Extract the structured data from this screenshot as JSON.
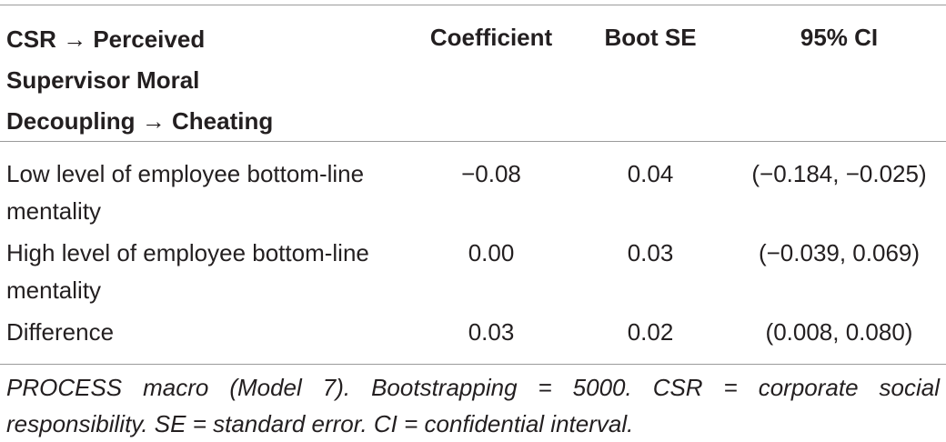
{
  "table": {
    "headers": {
      "path": "CSR → Perceived Supervisor Moral Decoupling → Cheating",
      "coefficient": "Coefficient",
      "boot_se": "Boot SE",
      "ci": "95% CI"
    },
    "rows": [
      {
        "label": "Low level of employee bottom-line mentality",
        "coefficient": "−0.08",
        "boot_se": "0.04",
        "ci": "(−0.184, −0.025)"
      },
      {
        "label": "High level of employee bottom-line mentality",
        "coefficient": "0.00",
        "boot_se": "0.03",
        "ci": "(−0.039, 0.069)"
      },
      {
        "label": "Difference",
        "coefficient": "0.03",
        "boot_se": "0.02",
        "ci": "(0.008, 0.080)"
      }
    ],
    "note": "PROCESS macro (Model 7). Bootstrapping = 5000. CSR = corporate social responsibility. SE = standard error. CI = confidential interval."
  }
}
